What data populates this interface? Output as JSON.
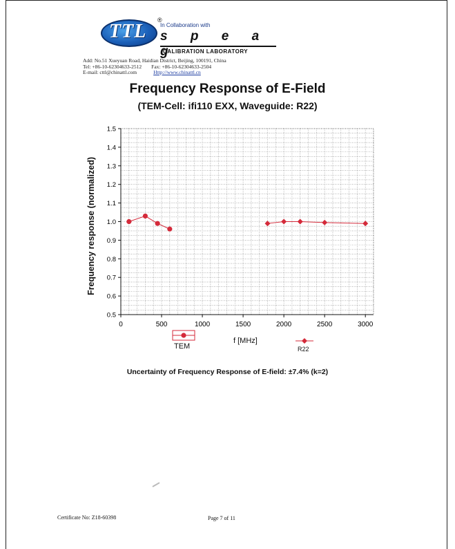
{
  "header": {
    "logo_text": "TTL",
    "logo_registered": "®",
    "collaboration": "In Collaboration with",
    "partner": "s p e a g",
    "partner_sub": "CALIBRATION LABORATORY",
    "address_line": "Add: No.51 Xueyuan Road, Haidian District, Beijing, 100191, China",
    "tel": "Tel: +86-10-62304633-2512",
    "fax": "Fax: +86-10-62304633-2504",
    "email": "E-mail: cttl@chinattl.com",
    "website": "Http://www.chinattl.cn"
  },
  "footer": {
    "uncertainty": "Uncertainty of Frequency Response of E-field: ±7.4% (k=2)",
    "certificate": "Certificate No: Z18-60398",
    "page": "Page 7 of 11"
  },
  "chart_data": {
    "type": "line",
    "title": "Frequency Response of E-Field",
    "subtitle": "(TEM-Cell: ifi110 EXX, Waveguide: R22)",
    "xlabel": "f [MHz]",
    "ylabel": "Frequency response (normalized)",
    "xlim": [
      0,
      3100
    ],
    "ylim": [
      0.5,
      1.5
    ],
    "xticks": [
      0,
      500,
      1000,
      1500,
      2000,
      2500,
      3000
    ],
    "yticks": [
      0.5,
      0.6,
      0.7,
      0.8,
      0.9,
      1.0,
      1.1,
      1.2,
      1.3,
      1.4,
      1.5
    ],
    "grid": true,
    "legend_position": "bottom",
    "series": [
      {
        "name": "TEM",
        "color": "#d42a3a",
        "marker": "circle",
        "x": [
          100,
          300,
          450,
          600
        ],
        "y": [
          1.0,
          1.03,
          0.99,
          0.96
        ]
      },
      {
        "name": "R22",
        "color": "#d42a3a",
        "marker": "diamond",
        "x": [
          1800,
          2000,
          2200,
          2500,
          3000
        ],
        "y": [
          0.99,
          1.0,
          1.0,
          0.995,
          0.99
        ]
      }
    ]
  }
}
